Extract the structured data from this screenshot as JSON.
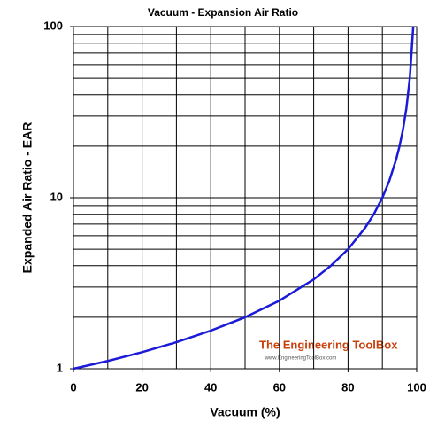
{
  "chart_data": {
    "type": "line",
    "title": "Vacuum - Expansion Air Ratio",
    "xlabel": "Vacuum (%)",
    "ylabel": "Expanded Air Ratio - EAR",
    "x": [
      0,
      10,
      20,
      30,
      40,
      50,
      60,
      70,
      75,
      80,
      85,
      87.5,
      90,
      92,
      94,
      95,
      96,
      97,
      98,
      99
    ],
    "series": [
      {
        "name": "EAR",
        "color": "#1a1ad8",
        "values": [
          1,
          1.11,
          1.25,
          1.43,
          1.67,
          2,
          2.5,
          3.33,
          4,
          5,
          6.67,
          8,
          10,
          12.5,
          16.7,
          20,
          25,
          33.3,
          50,
          100
        ]
      }
    ],
    "xlim": [
      0,
      100
    ],
    "xticks": [
      0,
      20,
      40,
      60,
      80,
      100
    ],
    "xgrid": [
      0,
      10,
      20,
      30,
      40,
      50,
      60,
      70,
      80,
      90,
      100
    ],
    "ylim": [
      1,
      100
    ],
    "yticks": [
      1,
      10,
      100
    ],
    "ylog": true,
    "ygrid": [
      1,
      2,
      3,
      4,
      5,
      6,
      7,
      8,
      9,
      10,
      20,
      30,
      40,
      50,
      60,
      70,
      80,
      90,
      100
    ],
    "grid": true,
    "watermark": {
      "title": "The Engineering ToolBox",
      "url": "www.EngineeringToolBox.com"
    }
  }
}
